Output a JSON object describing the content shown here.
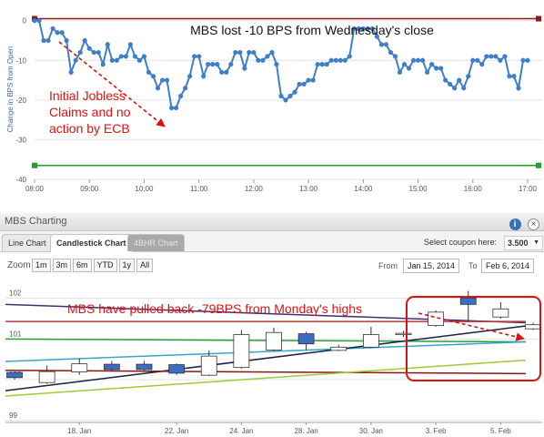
{
  "intraday": {
    "title": "MBS lost -10 BPS from Wednesday's close",
    "ylabel": "Change in BPS from Open",
    "annotation_lines": [
      "Initial Jobless",
      "Claims and no",
      "action by ECB"
    ],
    "colors": {
      "series": "#3f7fca",
      "upper": "#8b1a1a",
      "lower": "#1f9e2c",
      "annotation": "#dd1111"
    }
  },
  "chart_data": [
    {
      "type": "line",
      "title": "MBS lost -10 BPS from Wednesday's close",
      "xlabel": "",
      "ylabel": "Change in BPS from Open",
      "x_ticks": [
        "08:00",
        "09:00",
        "10:00",
        "11:00",
        "12:00",
        "13:00",
        "14:00",
        "15:00",
        "16:00",
        "17:00"
      ],
      "y_ticks": [
        0,
        -10,
        -20,
        -30,
        -40
      ],
      "ylim": [
        -40,
        2
      ],
      "xlim": [
        "08:00",
        "17:00"
      ],
      "grid": "horizontal",
      "reference_lines": [
        {
          "y": 0.5,
          "color": "#8b1a1a"
        },
        {
          "y": -36.5,
          "color": "#1f9e2c"
        }
      ],
      "series": [
        {
          "color": "#3f7fca",
          "x_minutes_from_start": [
            0,
            5,
            10,
            15,
            20,
            25,
            30,
            35,
            40,
            45,
            50,
            55,
            60,
            65,
            70,
            75,
            80,
            85,
            90,
            95,
            100,
            105,
            110,
            115,
            120,
            125,
            130,
            135,
            140,
            145,
            150,
            155,
            160,
            165,
            170,
            175,
            180,
            185,
            190,
            195,
            200,
            205,
            210,
            215,
            220,
            225,
            230,
            235,
            240,
            245,
            250,
            255,
            260,
            265,
            270,
            275,
            280,
            285,
            290,
            295,
            300,
            305,
            310,
            315,
            320,
            325,
            330,
            335,
            340,
            345,
            350,
            355,
            360,
            365,
            370,
            375,
            380,
            385,
            390,
            395,
            400,
            405,
            410,
            415,
            420,
            425,
            430,
            435,
            440,
            445,
            450,
            455,
            460,
            465,
            470,
            475,
            480,
            485,
            490,
            495,
            500,
            505,
            510,
            515,
            520,
            525,
            530,
            535,
            540
          ],
          "values": [
            0,
            0,
            -5,
            -5,
            -2,
            -3,
            -3,
            -5,
            -13,
            -10,
            -8,
            -5,
            -7,
            -8,
            -8,
            -11,
            -6,
            -10,
            -10,
            -9,
            -9,
            -6,
            -9,
            -10,
            -9,
            -13,
            -14,
            -17,
            -15,
            -15,
            -22,
            -22,
            -19,
            -17,
            -14,
            -9,
            -9,
            -14,
            -11,
            -11,
            -11,
            -13,
            -13,
            -11,
            -8,
            -8,
            -12,
            -8,
            -8,
            -10,
            -10,
            -9,
            -8,
            -11,
            -19,
            -20,
            -19,
            -18,
            -16,
            -16,
            -15,
            -15,
            -11,
            -11,
            -11,
            -10,
            -10,
            -10,
            -10,
            -9,
            -2,
            -2,
            -2,
            -2,
            -2,
            -4,
            -6,
            -6,
            -8,
            -9,
            -13,
            -11,
            -12,
            -10,
            -10,
            -10,
            -13,
            -11,
            -12,
            -12,
            -15,
            -16,
            -17,
            -15,
            -17,
            -14,
            -10,
            -10,
            -11,
            -9,
            -9,
            -9,
            -10,
            -9,
            -14,
            -14,
            -17,
            -10,
            -10
          ]
        }
      ]
    },
    {
      "type": "candlestick",
      "title": "",
      "y_ticks": [
        102,
        101,
        100,
        99
      ],
      "ylim": [
        98.95,
        102.35
      ],
      "x_ticks": [
        "18. Jan",
        "22. Jan",
        "24. Jan",
        "28. Jan",
        "30. Jan",
        "3. Feb",
        "5. Feb"
      ],
      "categories": [
        "Jan 15",
        "Jan 16",
        "Jan 17",
        "Jan 20",
        "Jan 21",
        "Jan 22",
        "Jan 23",
        "Jan 24",
        "Jan 27",
        "Jan 28",
        "Jan 29",
        "Jan 30",
        "Jan 31",
        "Feb 3",
        "Feb 4",
        "Feb 5",
        "Feb 6"
      ],
      "open": [
        100.18,
        99.93,
        100.19,
        100.38,
        100.38,
        100.37,
        100.11,
        100.3,
        100.73,
        101.13,
        100.72,
        100.8,
        101.12,
        101.33,
        102.01,
        101.54,
        101.25
      ],
      "close": [
        100.05,
        100.2,
        100.39,
        100.25,
        100.25,
        100.16,
        100.58,
        101.11,
        101.16,
        100.88,
        100.8,
        101.11,
        101.14,
        101.66,
        101.85,
        101.74,
        101.35
      ],
      "high": [
        100.2,
        100.35,
        100.52,
        100.46,
        100.46,
        100.4,
        100.72,
        101.22,
        101.28,
        101.18,
        100.86,
        101.3,
        101.2,
        101.7,
        102.18,
        101.9,
        101.4
      ],
      "low": [
        100.0,
        99.9,
        100.12,
        100.22,
        100.22,
        100.12,
        100.09,
        100.27,
        100.7,
        100.72,
        100.7,
        100.77,
        101.05,
        101.3,
        101.42,
        101.5,
        101.22
      ],
      "overlay_lines": [
        {
          "color": "#4b2b6b",
          "y": [
            101.85,
            101.4
          ]
        },
        {
          "color": "#b23a3a",
          "y": [
            101.43,
            101.43
          ]
        },
        {
          "color": "#2a9d3a",
          "y": [
            101.0,
            100.93
          ]
        },
        {
          "color": "#35a8c8",
          "y": [
            100.45,
            100.93
          ]
        },
        {
          "color": "#1a2040",
          "y": [
            99.73,
            101.32
          ]
        },
        {
          "color": "#8a1515",
          "y": [
            100.23,
            100.15
          ]
        },
        {
          "color": "#9acd32",
          "y": [
            99.6,
            100.48
          ]
        }
      ]
    }
  ],
  "panel": {
    "title": "MBS Charting",
    "info_glyph": "i",
    "close_glyph": "×",
    "tabs": [
      "Line Chart",
      "Candlestick Chart",
      "4BHR Chart"
    ],
    "active_tab": "Candlestick Chart",
    "coupon_label": "Select coupon here:",
    "coupon_value": "3.500",
    "coupon_arrow": "▼",
    "zoom_label": "Zoom",
    "zoom_buttons": [
      "1m",
      "3m",
      "6m",
      "YTD",
      "1y",
      "All"
    ],
    "from_label": "From",
    "from_value": "Jan 15, 2014",
    "to_label": "To",
    "to_value": "Feb 6, 2014",
    "annotation": "MBS have pulled back -79BPS from Monday's highs",
    "colors": {
      "up": "#ffffff",
      "down": "#3a6ec2",
      "annotation": "#dd1111",
      "highlight": "#dd1111"
    }
  }
}
